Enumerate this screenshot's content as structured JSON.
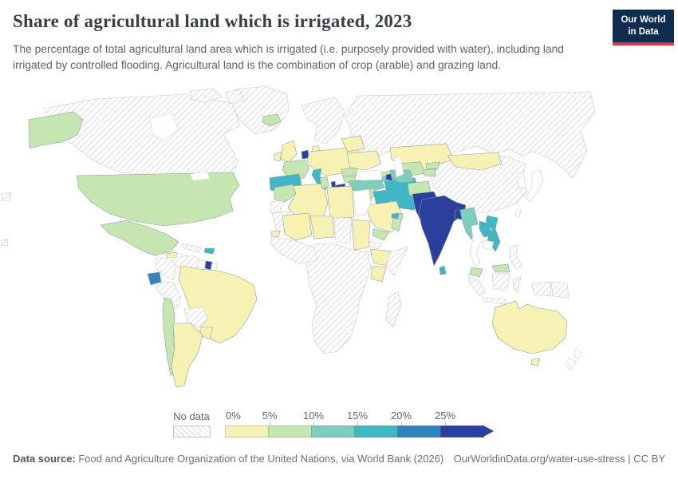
{
  "header": {
    "title": "Share of agricultural land which is irrigated, 2023",
    "subtitle": "The percentage of total agricultural land area which is irrigated (i.e. purposely provided with water), including land irrigated by controlled flooding. Agricultural land is the combination of crop (arable) and grazing land.",
    "logo_line1": "Our World",
    "logo_line2": "in Data",
    "logo_bg": "#102d50",
    "logo_accent": "#d93a42"
  },
  "footer": {
    "source_label": "Data source:",
    "source_text": " Food and Agriculture Organization of the United Nations, via World Bank (2026)",
    "link_text": "OurWorldinData.org/water-use-stress | CC BY"
  },
  "chart_data": {
    "type": "choropleth-map",
    "title": "Share of agricultural land which is irrigated",
    "year": "2023",
    "unit": "% of agricultural land",
    "no_data_label": "No data",
    "legend_ticks": [
      "0%",
      "5%",
      "10%",
      "15%",
      "20%",
      "25%"
    ],
    "bin_colors": {
      "b0": "#f7f2b4",
      "b1": "#c5e6b1",
      "b2": "#7fcdbb",
      "b3": "#41b6c4",
      "b4": "#3383bd",
      "b5": "#2b3f9c"
    },
    "bins": [
      {
        "range": "0-5%",
        "color": "#f7f2b4"
      },
      {
        "range": "5-10%",
        "color": "#c5e6b1"
      },
      {
        "range": "10-15%",
        "color": "#7fcdbb"
      },
      {
        "range": "15-20%",
        "color": "#41b6c4"
      },
      {
        "range": "20-25%",
        "color": "#3383bd"
      },
      {
        "range": "25%+",
        "color": "#2b3f9c"
      }
    ],
    "countries": {
      "greenland": "no-data",
      "canada": "no-data",
      "arctic-islands-1": "no-data",
      "arctic-islands-2": "no-data",
      "russia": "no-data",
      "scandinavia": "no-data",
      "china": "no-data",
      "peru": "no-data",
      "bolivia": "no-data",
      "colombia": "no-data",
      "venezuela": "no-data",
      "cuba": "no-data",
      "panama": "no-data",
      "nicaragua": "no-data",
      "mauritania": "no-data",
      "western-sahara": "no-data",
      "chad": "no-data",
      "somalia": "no-data",
      "eritrea": "no-data",
      "madagascar": "no-data",
      "west-africa-coast": "no-data",
      "central-southern-africa": "no-data",
      "indonesia-sumatra": "no-data",
      "indonesia-java": "no-data",
      "indonesia-borneo": "no-data",
      "indonesia-sulawesi": "no-data",
      "indonesia-papua": "no-data",
      "papua-new-guinea": "no-data",
      "philippines": "no-data",
      "island-west-1": "no-data",
      "island-west-2": "no-data",
      "egypt": "none",
      "japan": "none",
      "south-korea": "none",
      "taiwan": "none",
      "thailand": "none",
      "cambodia": "none",
      "new-zealand-north": "none",
      "new-zealand-south": "none",
      "guyana": "none",
      "french-guiana": "none",
      "honduras": "none",
      "united-kingdom": "b0",
      "ireland": "b0",
      "denmark": "b0",
      "central-europe": "b0",
      "ukraine": "b0",
      "belarus-baltics": "b0",
      "kazakhstan": "b0",
      "mongolia": "b0",
      "australia": "b0",
      "tasmania": "b0",
      "brazil": "b0",
      "argentina": "b0",
      "paraguay": "b0",
      "guatemala": "b0",
      "costa-rica": "b0",
      "algeria": "b0",
      "libya": "b0",
      "mali": "b0",
      "niger": "b0",
      "sudan": "b0",
      "ethiopia": "b0",
      "kenya": "b0",
      "senegal": "b0",
      "saudi-arabia": "b0",
      "united-states": "b1",
      "alaska": "b1",
      "mexico": "b1",
      "chile": "b1",
      "iceland": "b1",
      "france": "b1",
      "morocco": "b1",
      "tunisia": "b1",
      "romania": "b1",
      "bulgaria": "b1",
      "georgia": "b1",
      "syria": "b1",
      "jordan": "b1",
      "yemen": "b1",
      "oman": "b1",
      "uzbekistan": "b1",
      "kyrgyzstan": "b1",
      "tajikistan": "b1",
      "afghanistan": "b1",
      "malaysia": "b1",
      "malaysia-borneo": "b1",
      "turkey": "b2",
      "turkmenistan": "b2",
      "myanmar": "b2",
      "armenia": "b2",
      "spain": "b3",
      "portugal": "b3",
      "italy": "b3",
      "iran": "b3",
      "iraq": "b3",
      "uae": "b3",
      "laos": "b3",
      "vietnam": "b3",
      "sri-lanka": "b3",
      "dominican-republic": "b3",
      "ecuador": "b4",
      "india": "b5",
      "pakistan": "b5",
      "bangladesh": "b5",
      "suriname": "b5",
      "israel": "b5",
      "azerbaijan": "b5",
      "netherlands": "b5",
      "albania": "b5",
      "greece": "b5"
    }
  }
}
